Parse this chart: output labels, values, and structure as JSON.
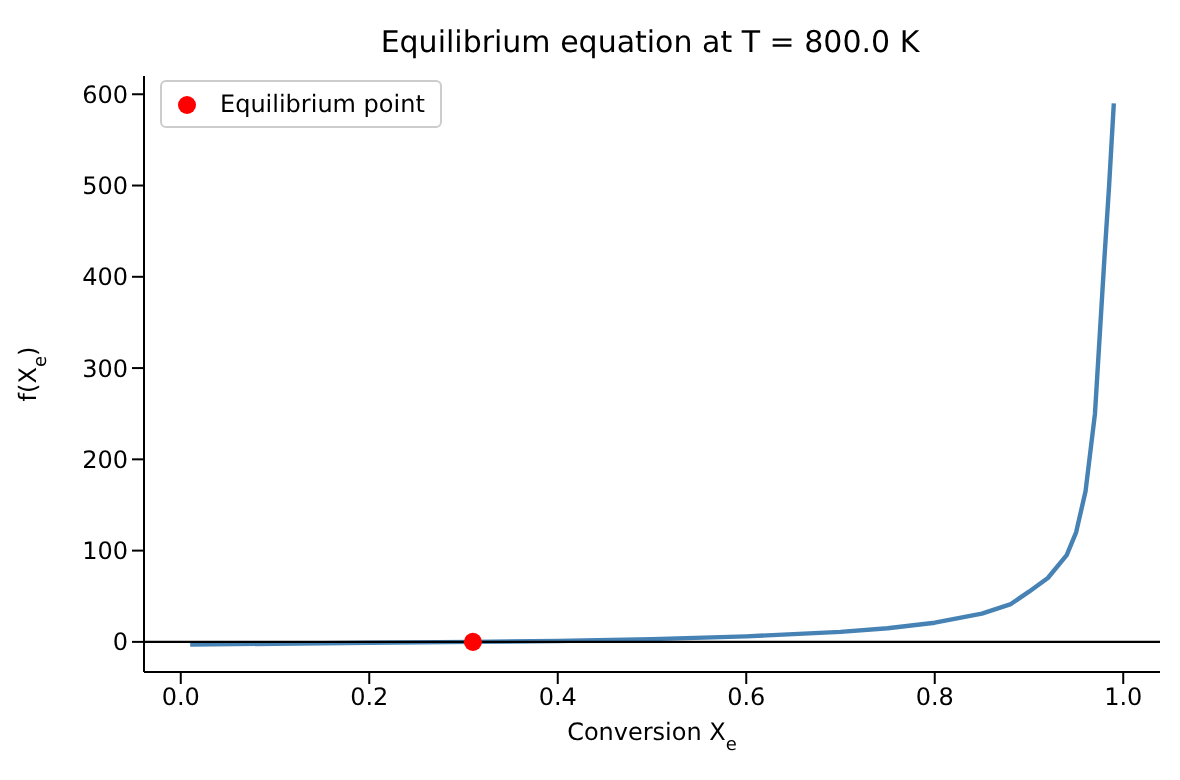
{
  "chart_data": {
    "type": "line",
    "title": "Equilibrium equation at T = 800.0 K",
    "xlabel": "Conversion X$_{e}$",
    "ylabel": "f(X$_{e}$)",
    "xlim": [
      -0.039,
      1.039
    ],
    "ylim": [
      -33,
      620
    ],
    "xticks": [
      {
        "value": 0,
        "label": "0.0"
      },
      {
        "value": 0.2,
        "label": "0.2"
      },
      {
        "value": 0.4,
        "label": "0.4"
      },
      {
        "value": 0.6,
        "label": "0.6"
      },
      {
        "value": 0.8,
        "label": "0.8"
      },
      {
        "value": 1,
        "label": "1.0"
      }
    ],
    "yticks": [
      0,
      100,
      200,
      300,
      400,
      500,
      600
    ],
    "series": [
      {
        "color": "#4682b4",
        "marker": "none",
        "x": [
          0.01,
          0.1,
          0.2,
          0.31,
          0.4,
          0.5,
          0.6,
          0.7,
          0.75,
          0.8,
          0.85,
          0.88,
          0.9,
          0.92,
          0.94,
          0.95,
          0.96,
          0.97,
          0.98,
          0.985,
          0.99
        ],
        "values": [
          -3,
          -2,
          -1,
          0,
          1,
          3,
          6,
          11,
          15,
          21,
          31,
          41,
          55,
          70,
          95,
          120,
          165,
          250,
          420,
          500,
          590
        ]
      },
      {
        "type": "scatter",
        "name": "Equilibrium point",
        "color": "#ff0000",
        "marker": "circle",
        "x": [
          0.31
        ],
        "values": [
          0
        ]
      }
    ],
    "ref_lines": [
      {
        "axis": "y",
        "value": 0,
        "color": "#000000"
      }
    ],
    "legend": "top left",
    "grid": false
  }
}
